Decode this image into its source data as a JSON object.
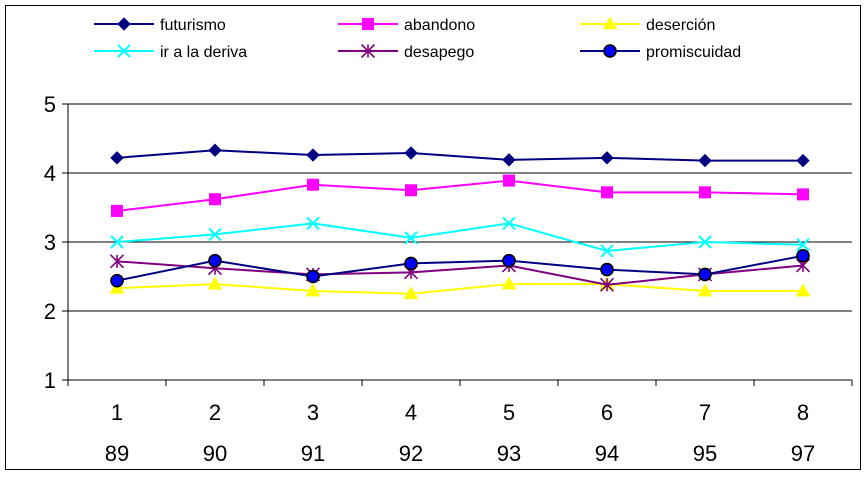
{
  "chart_data": {
    "type": "line",
    "categories": [
      "1",
      "2",
      "3",
      "4",
      "5",
      "6",
      "7",
      "8"
    ],
    "categories_secondary": [
      "89",
      "90",
      "91",
      "92",
      "93",
      "94",
      "95",
      "97"
    ],
    "series": [
      {
        "name": "futurismo",
        "color": "#000080",
        "marker": "diamond",
        "values": [
          4.22,
          4.33,
          4.26,
          4.29,
          4.19,
          4.22,
          4.18,
          4.18
        ]
      },
      {
        "name": "abandono",
        "color": "#ff00ff",
        "marker": "square",
        "values": [
          3.45,
          3.62,
          3.83,
          3.75,
          3.89,
          3.72,
          3.72,
          3.69
        ]
      },
      {
        "name": "deserción",
        "color": "#ffff00",
        "marker": "triangle",
        "values": [
          2.33,
          2.39,
          2.29,
          2.25,
          2.39,
          2.39,
          2.29,
          2.29
        ]
      },
      {
        "name": "ir a la deriva",
        "color": "#00ffff",
        "marker": "x",
        "values": [
          3.0,
          3.11,
          3.27,
          3.06,
          3.27,
          2.87,
          3.0,
          2.96
        ]
      },
      {
        "name": "desapego",
        "color": "#800080",
        "marker": "star",
        "values": [
          2.72,
          2.62,
          2.53,
          2.56,
          2.66,
          2.38,
          2.53,
          2.66
        ]
      },
      {
        "name": "promiscuidad",
        "color": "#000080",
        "marker_fill": "#0000ff",
        "marker": "circle",
        "values": [
          2.44,
          2.73,
          2.5,
          2.69,
          2.73,
          2.6,
          2.53,
          2.8
        ]
      }
    ],
    "yticks": [
      "1",
      "2",
      "3",
      "4",
      "5"
    ],
    "ylim": [
      1,
      5
    ],
    "grid": true,
    "legend_position": "top"
  }
}
